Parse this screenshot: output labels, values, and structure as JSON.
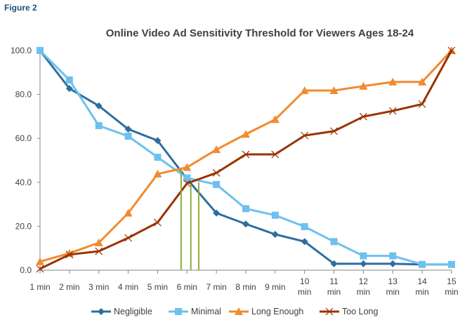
{
  "figure_label": "Figure 2",
  "chart_data": {
    "type": "line",
    "title": "Online Video Ad Sensitivity Threshold for Viewers Ages 18-24",
    "xlabel": "",
    "ylabel": "",
    "categories": [
      "1 min",
      "2 min",
      "3 min",
      "4 min",
      "5 min",
      "6 min",
      "7 min",
      "8 min",
      "9 min",
      "10 min",
      "11 min",
      "12 min",
      "13 min",
      "14 min",
      "15 min"
    ],
    "ylim": [
      0,
      100
    ],
    "yticks": [
      "0.0",
      "20.0",
      "40.0",
      "60.0",
      "80.0",
      "100.0"
    ],
    "grid": false,
    "legend": "bottom",
    "series": [
      {
        "name": "Negligible",
        "color": "#2e6e9e",
        "marker": "diamond",
        "values": [
          100,
          82.7,
          74.8,
          64.2,
          59,
          41.5,
          26,
          21,
          16.3,
          13,
          2.9,
          2.9,
          2.9,
          2.6,
          2.6
        ]
      },
      {
        "name": "Minimal",
        "color": "#6ec1ee",
        "marker": "square",
        "values": [
          100,
          86.6,
          65.8,
          61,
          51.4,
          42,
          39,
          28,
          25,
          19.8,
          13,
          6.5,
          6.5,
          2.6,
          2.6
        ]
      },
      {
        "name": "Long Enough",
        "color": "#f28a2e",
        "marker": "triangle",
        "values": [
          3.9,
          7.7,
          12.5,
          26,
          43.8,
          46.8,
          54.9,
          61.9,
          68.6,
          81.8,
          81.8,
          83.8,
          85.7,
          85.7,
          100
        ]
      },
      {
        "name": "Too Long",
        "color": "#993300",
        "marker": "x",
        "values": [
          0.6,
          7.1,
          8.6,
          14.7,
          21.7,
          39.5,
          44.3,
          52.7,
          52.7,
          61.3,
          63.3,
          69.9,
          72.5,
          75.6,
          100
        ]
      }
    ],
    "annotations": {
      "color": "#8db03a",
      "vertical_lines": [
        {
          "x": 5.8,
          "y": 46
        },
        {
          "x": 6.13,
          "y": 39
        },
        {
          "x": 6.4,
          "y": 40
        }
      ]
    }
  }
}
